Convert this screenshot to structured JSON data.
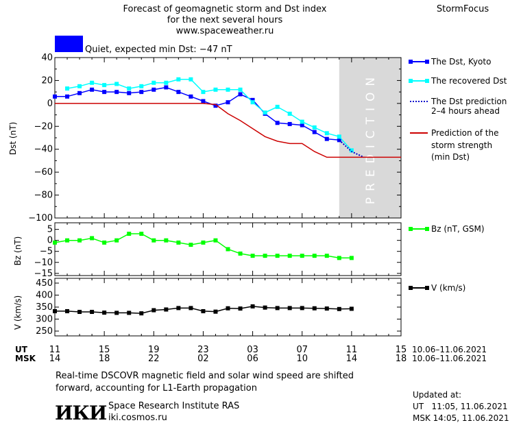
{
  "header": {
    "title_line1": "Forecast of geomagnetic storm and Dst index",
    "title_line2": "for the next several hours",
    "title_line3": "www.spaceweather.ru",
    "brand": "StormFocus"
  },
  "status": {
    "label": "Quiet, expected min Dst: −47 nT",
    "color": "#0000ff"
  },
  "prediction_label": "PREDICTION",
  "legend": {
    "dst_kyoto": "The Dst, Kyoto",
    "recovered": "The recovered Dst",
    "prediction_l1": "The Dst prediction",
    "prediction_l2": "2–4 hours ahead",
    "strength_l1": "Prediction of the",
    "strength_l2": "storm strength",
    "strength_l3": "(min Dst)",
    "bz": "Bz (nT, GSM)",
    "v": "V (km/s)"
  },
  "time_axis": {
    "ut_label": "UT",
    "msk_label": "MSK",
    "ut_ticks": [
      "11",
      "15",
      "19",
      "23",
      "03",
      "07",
      "11",
      "15"
    ],
    "msk_ticks": [
      "14",
      "18",
      "22",
      "02",
      "06",
      "10",
      "14",
      "18"
    ],
    "date_range_ut": "10.06–11.06.2021",
    "date_range_msk": "10.06–11.06.2021"
  },
  "footer": {
    "note_l1": "Real-time DSCOVR magnetic field and solar wind speed are shifted",
    "note_l2": "forward, accounting for L1-Earth propagation",
    "logo": "ИКИ",
    "institute": "Space Research Institute RAS",
    "site": "iki.cosmos.ru",
    "updated_label": "Updated at:",
    "updated_ut": "UT   11:05, 11.06.2021",
    "updated_msk": "MSK 14:05, 11.06.2021"
  },
  "chart_data": [
    {
      "type": "line",
      "ylabel": "Dst (nT)",
      "ylim": [
        -100,
        40
      ],
      "yticks": [
        40,
        20,
        0,
        -20,
        -40,
        -60,
        -80,
        -100
      ],
      "x_unit": "hours since 11 UT, 10.06.2021",
      "xlim": [
        0,
        28
      ],
      "prediction_window": [
        23,
        28
      ],
      "series": [
        {
          "name": "The Dst, Kyoto",
          "color": "#0000ff",
          "x": [
            0,
            1,
            2,
            3,
            4,
            5,
            6,
            7,
            8,
            9,
            10,
            11,
            12,
            13,
            14,
            15,
            16,
            17,
            18,
            19,
            20,
            21,
            22,
            23
          ],
          "y": [
            6,
            6,
            9,
            12,
            10,
            10,
            9,
            10,
            12,
            14,
            10,
            6,
            2,
            -2,
            1,
            8,
            3,
            -9,
            -17,
            -18,
            -19,
            -25,
            -31,
            -32
          ]
        },
        {
          "name": "The recovered Dst",
          "color": "#00ffff",
          "x": [
            1,
            2,
            3,
            4,
            5,
            6,
            7,
            8,
            9,
            10,
            11,
            12,
            13,
            14,
            15,
            16,
            17,
            18,
            19,
            20,
            21,
            22,
            23,
            24
          ],
          "y": [
            13,
            15,
            18,
            16,
            17,
            13,
            15,
            18,
            18,
            21,
            21,
            10,
            12,
            12,
            12,
            1,
            -8,
            -3,
            -9,
            -16,
            -21,
            -26,
            -29,
            -41
          ]
        },
        {
          "name": "The Dst prediction 2–4 hours ahead",
          "color": "#0000cc",
          "style": "dotted",
          "x": [
            23,
            24,
            25
          ],
          "y": [
            -32,
            -42,
            -47
          ]
        },
        {
          "name": "Prediction of the storm strength (min Dst)",
          "color": "#cc0000",
          "x": [
            0,
            12,
            13,
            14,
            15,
            16,
            17,
            18,
            19,
            20,
            21,
            22,
            23,
            24,
            28
          ],
          "y": [
            0,
            0,
            -1,
            -9,
            -15,
            -22,
            -29,
            -33,
            -35,
            -35,
            -42,
            -47,
            -47,
            -47,
            -47
          ]
        }
      ]
    },
    {
      "type": "line",
      "ylabel": "Bz (nT)",
      "ylim": [
        -16,
        8
      ],
      "yticks": [
        5,
        0,
        -5,
        -10,
        -15
      ],
      "series": [
        {
          "name": "Bz (nT, GSM)",
          "color": "#00ff00",
          "x": [
            0,
            1,
            2,
            3,
            4,
            5,
            6,
            7,
            8,
            9,
            10,
            11,
            12,
            13,
            14,
            15,
            16,
            17,
            18,
            19,
            20,
            21,
            22,
            23,
            24
          ],
          "y": [
            -1,
            0,
            0,
            1,
            -1,
            0,
            3,
            3,
            0,
            0,
            -1,
            -2,
            -1,
            0,
            -4,
            -6,
            -7,
            -7,
            -7,
            -7,
            -7,
            -7,
            -7,
            -8,
            -8
          ]
        }
      ]
    },
    {
      "type": "line",
      "ylabel": "V (km/s)",
      "ylim": [
        230,
        470
      ],
      "yticks": [
        450,
        400,
        350,
        300,
        250
      ],
      "series": [
        {
          "name": "V (km/s)",
          "color": "#000000",
          "x": [
            0,
            1,
            2,
            3,
            4,
            5,
            6,
            7,
            8,
            9,
            10,
            11,
            12,
            13,
            14,
            15,
            16,
            17,
            18,
            19,
            20,
            21,
            22,
            23,
            24
          ],
          "y": [
            333,
            333,
            330,
            330,
            327,
            326,
            326,
            324,
            337,
            340,
            346,
            346,
            333,
            331,
            345,
            344,
            353,
            348,
            346,
            346,
            346,
            345,
            344,
            342,
            343
          ]
        }
      ]
    }
  ]
}
